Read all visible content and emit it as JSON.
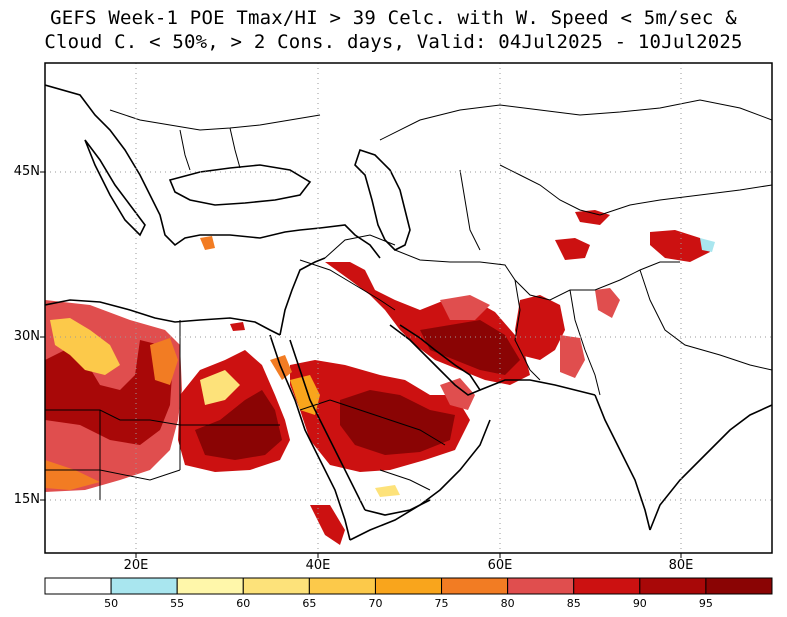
{
  "title": {
    "line1": "GEFS Week-1 POE Tmax/HI > 39 Celc. with W. Speed < 5m/sec &",
    "line2": "Cloud C. < 50%, > 2 Cons. days, Valid: 04Jul2025 - 10Jul2025"
  },
  "map": {
    "lat_labels": [
      "45N",
      "30N",
      "15N"
    ],
    "lon_labels": [
      "20E",
      "40E",
      "60E",
      "80E"
    ],
    "grid": "dotted"
  },
  "colorbar": {
    "labels": [
      "50",
      "55",
      "60",
      "65",
      "70",
      "75",
      "80",
      "85",
      "90",
      "95"
    ],
    "colors": [
      "#ffffff",
      "#a9e6ef",
      "#fff7aa",
      "#fde27a",
      "#fcc94a",
      "#f9a51c",
      "#f27c23",
      "#e04e4e",
      "#cc1111",
      "#a80808",
      "#8a0404"
    ]
  }
}
